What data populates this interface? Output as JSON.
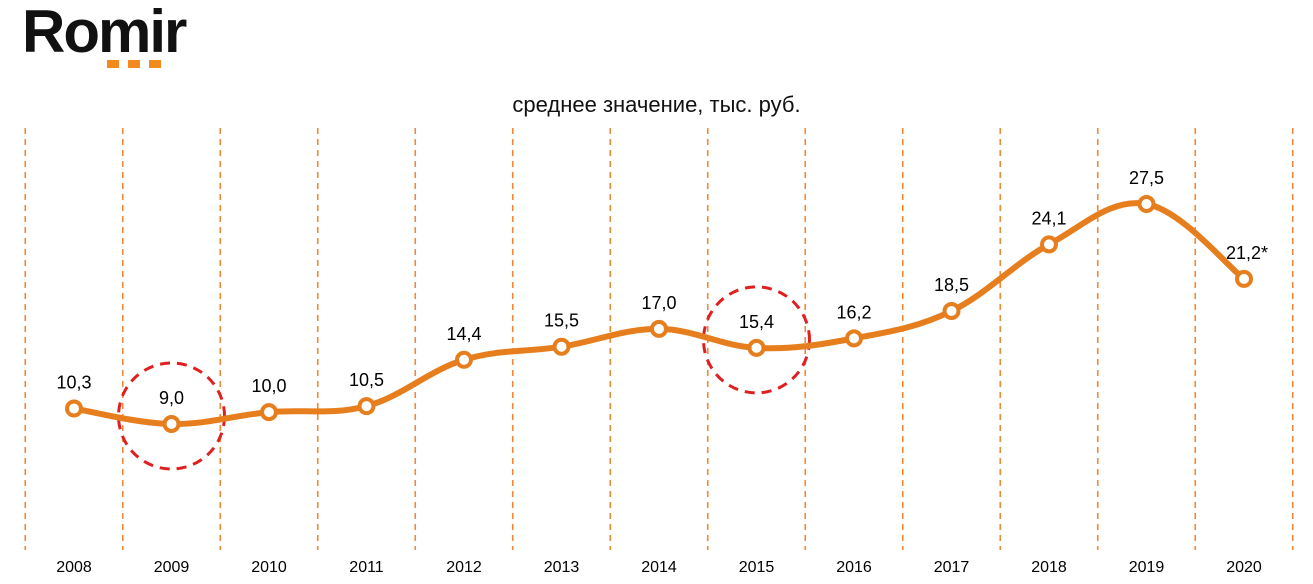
{
  "logo": {
    "text": "Romir"
  },
  "chart_data": {
    "type": "line",
    "title": "среднее значение, тыс. руб.",
    "xlabel": "",
    "ylabel": "",
    "categories": [
      "2008",
      "2009",
      "2010",
      "2011",
      "2012",
      "2013",
      "2014",
      "2015",
      "2016",
      "2017",
      "2018",
      "2019",
      "2020"
    ],
    "series": [
      {
        "values": [
          10.3,
          9.0,
          10.0,
          10.5,
          14.4,
          15.5,
          17.0,
          15.4,
          16.2,
          18.5,
          24.1,
          27.5,
          21.2
        ]
      }
    ],
    "data_labels": [
      "10,3",
      "9,0",
      "10,0",
      "10,5",
      "14,4",
      "15,5",
      "17,0",
      "15,4",
      "16,2",
      "18,5",
      "24,1",
      "27,5",
      "21,2*"
    ],
    "highlighted_categories": [
      "2009",
      "2015"
    ],
    "gridlines": "vertical dashed between categories",
    "colors": {
      "line": "#e67e1e",
      "grid": "#f0893a",
      "highlight": "#e02020",
      "marker_fill": "#ffffff"
    }
  }
}
